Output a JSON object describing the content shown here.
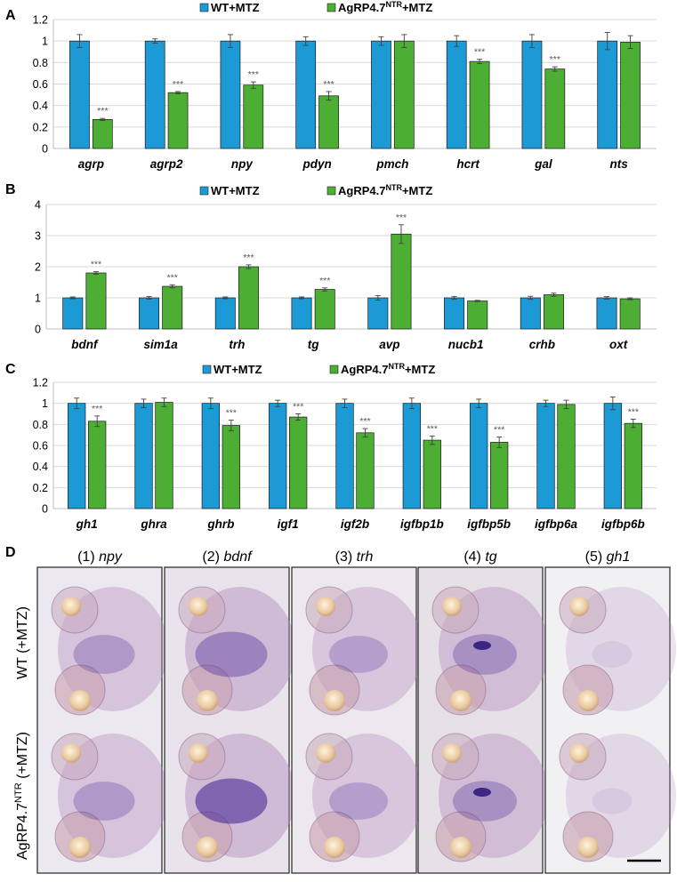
{
  "panel_labels": [
    "A",
    "B",
    "C",
    "D"
  ],
  "legend": {
    "wt": "WT+MTZ",
    "agrp_prefix": "AgRP4.7",
    "agrp_sup": "NTR",
    "agrp_suffix": "+MTZ"
  },
  "colors": {
    "wt": "#1b9ad6",
    "agrp": "#4caf33",
    "grid": "#d9d9d9",
    "error": "#404040",
    "star": "#555555"
  },
  "significance_marker": "***",
  "chart_data": [
    {
      "panel": "A",
      "type": "bar",
      "title": "",
      "xlabel": "",
      "ylabel": "",
      "ylim": [
        0,
        1.2
      ],
      "yticks": [
        "0",
        "0.2",
        "0.4",
        "0.6",
        "0.8",
        "1",
        "1.2"
      ],
      "ytick_values": [
        0,
        0.2,
        0.4,
        0.6,
        0.8,
        1,
        1.2
      ],
      "grid": true,
      "legend_position": "top",
      "categories": [
        "agrp",
        "agrp2",
        "npy",
        "pdyn",
        "pmch",
        "hcrt",
        "gal",
        "nts"
      ],
      "series": [
        {
          "name": "WT+MTZ",
          "values": [
            1,
            1,
            1,
            1,
            1,
            1,
            1,
            1
          ],
          "errors": [
            0.06,
            0.02,
            0.06,
            0.04,
            0.04,
            0.05,
            0.06,
            0.08
          ]
        },
        {
          "name": "AgRP4.7NTR+MTZ",
          "values": [
            0.27,
            0.52,
            0.59,
            0.49,
            1,
            0.81,
            0.74,
            0.99
          ],
          "errors": [
            0.01,
            0.01,
            0.03,
            0.04,
            0.06,
            0.02,
            0.02,
            0.06
          ]
        }
      ],
      "significant": [
        true,
        true,
        true,
        true,
        false,
        true,
        true,
        false
      ]
    },
    {
      "panel": "B",
      "type": "bar",
      "title": "",
      "xlabel": "",
      "ylabel": "",
      "ylim": [
        0,
        4
      ],
      "yticks": [
        "0",
        "1",
        "2",
        "3",
        "4"
      ],
      "ytick_values": [
        0,
        1,
        2,
        3,
        4
      ],
      "grid": true,
      "legend_position": "top",
      "categories": [
        "bdnf",
        "sim1a",
        "trh",
        "tg",
        "avp",
        "nucb1",
        "crhb",
        "oxt"
      ],
      "series": [
        {
          "name": "WT+MTZ",
          "values": [
            1,
            1,
            1,
            1,
            1,
            1,
            1,
            1
          ],
          "errors": [
            0.03,
            0.04,
            0.03,
            0.03,
            0.07,
            0.04,
            0.05,
            0.04
          ]
        },
        {
          "name": "AgRP4.7NTR+MTZ",
          "values": [
            1.8,
            1.37,
            2.0,
            1.27,
            3.05,
            0.9,
            1.1,
            0.97
          ],
          "errors": [
            0.04,
            0.05,
            0.06,
            0.05,
            0.3,
            0.02,
            0.05,
            0.03
          ]
        }
      ],
      "significant": [
        true,
        true,
        true,
        true,
        true,
        false,
        false,
        false
      ]
    },
    {
      "panel": "C",
      "type": "bar",
      "title": "",
      "xlabel": "",
      "ylabel": "",
      "ylim": [
        0,
        1.2
      ],
      "yticks": [
        "0",
        "0.2",
        "0.4",
        "0.6",
        "0.8",
        "1",
        "1.2"
      ],
      "ytick_values": [
        0,
        0.2,
        0.4,
        0.6,
        0.8,
        1,
        1.2
      ],
      "grid": true,
      "legend_position": "top",
      "categories": [
        "gh1",
        "ghra",
        "ghrb",
        "igf1",
        "igf2b",
        "igfbp1b",
        "igfbp5b",
        "igfbp6a",
        "igfbp6b"
      ],
      "series": [
        {
          "name": "WT+MTZ",
          "values": [
            1,
            1,
            1,
            1,
            1,
            1,
            1,
            1,
            1
          ],
          "errors": [
            0.05,
            0.04,
            0.05,
            0.03,
            0.04,
            0.05,
            0.04,
            0.03,
            0.06
          ]
        },
        {
          "name": "AgRP4.7NTR+MTZ",
          "values": [
            0.83,
            1.01,
            0.79,
            0.87,
            0.72,
            0.65,
            0.63,
            0.99,
            0.81
          ],
          "errors": [
            0.05,
            0.04,
            0.05,
            0.03,
            0.04,
            0.04,
            0.05,
            0.04,
            0.04
          ]
        }
      ],
      "significant": [
        true,
        false,
        true,
        true,
        true,
        true,
        true,
        false,
        true
      ]
    }
  ],
  "panel_d": {
    "columns": [
      {
        "number": "(1)",
        "gene": "npy"
      },
      {
        "number": "(2)",
        "gene": "bdnf"
      },
      {
        "number": "(3)",
        "gene": "trh"
      },
      {
        "number": "(4)",
        "gene": "tg"
      },
      {
        "number": "(5)",
        "gene": "gh1"
      }
    ],
    "rows": [
      {
        "label": "WT (+MTZ)"
      },
      {
        "label_prefix": "AgRP4.7",
        "label_sup": "NTR",
        "label_suffix": " (+MTZ)"
      }
    ],
    "image_backgrounds": [
      "#ece8ef",
      "#e9e4ec",
      "#ede8ee",
      "#e6e1e7",
      "#f1f1f3"
    ],
    "stain_level": [
      0.55,
      0.75,
      0.5,
      0.6,
      0.15
    ]
  }
}
